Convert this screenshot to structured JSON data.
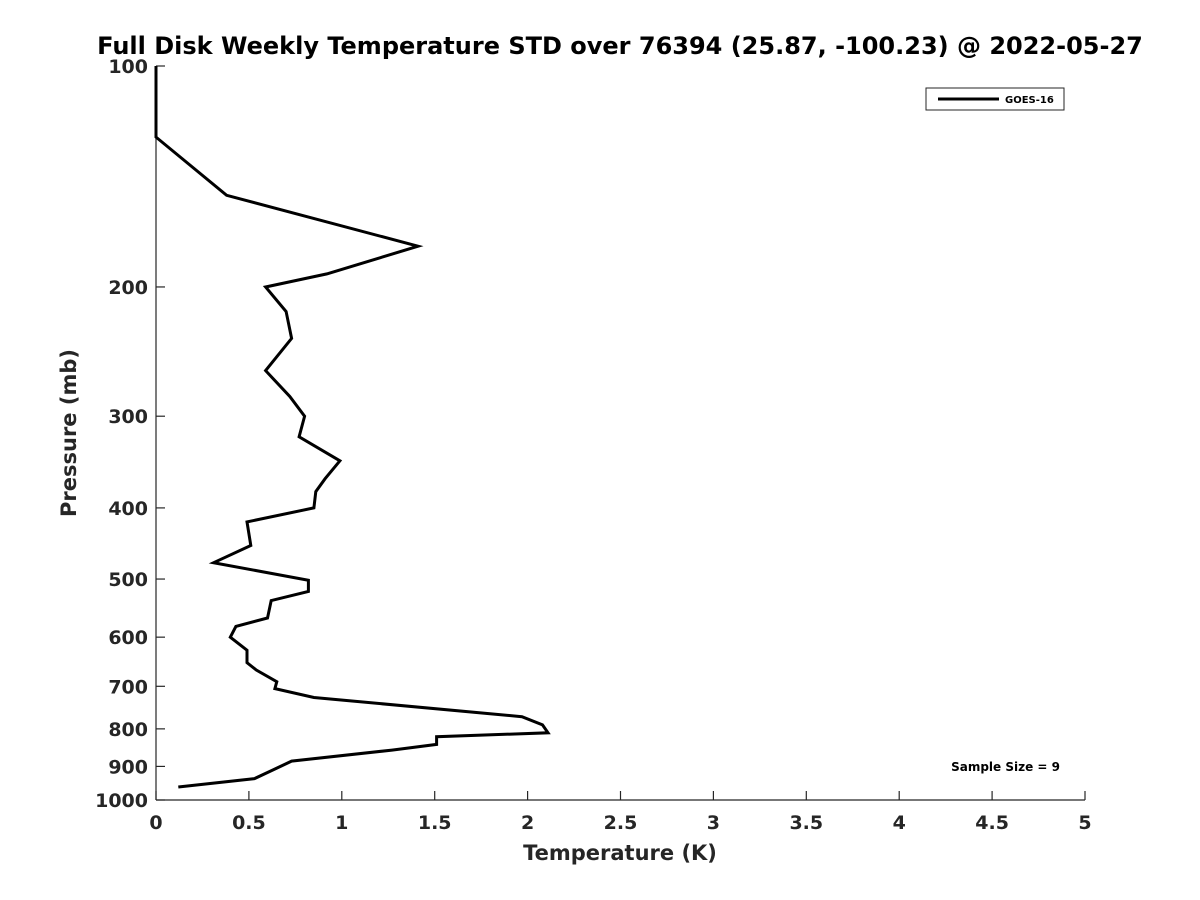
{
  "chart_data": {
    "type": "line",
    "title": "Full Disk Weekly Temperature STD over 76394 (25.87, -100.23) @ 2022-05-27",
    "xlabel": "Temperature (K)",
    "ylabel": "Pressure (mb)",
    "xlim": [
      0,
      5
    ],
    "ylim": [
      100,
      1000
    ],
    "y_scale": "log",
    "y_reversed": true,
    "grid": false,
    "legend_position": "top-right",
    "x_ticks": [
      "0",
      "0.5",
      "1",
      "1.5",
      "2",
      "2.5",
      "3",
      "3.5",
      "4",
      "4.5",
      "5"
    ],
    "y_ticks": [
      "100",
      "200",
      "300",
      "400",
      "500",
      "600",
      "700",
      "800",
      "900",
      "1000"
    ],
    "annotation": "Sample Size = 9",
    "series": [
      {
        "name": "GOES-16",
        "color": "#000000",
        "points": [
          {
            "x": 0.0,
            "y": 100
          },
          {
            "x": 0.0,
            "y": 125
          },
          {
            "x": 0.38,
            "y": 150
          },
          {
            "x": 1.41,
            "y": 176
          },
          {
            "x": 0.92,
            "y": 192
          },
          {
            "x": 0.59,
            "y": 200
          },
          {
            "x": 0.7,
            "y": 216
          },
          {
            "x": 0.73,
            "y": 235
          },
          {
            "x": 0.59,
            "y": 260
          },
          {
            "x": 0.72,
            "y": 282
          },
          {
            "x": 0.8,
            "y": 300
          },
          {
            "x": 0.77,
            "y": 320
          },
          {
            "x": 0.99,
            "y": 345
          },
          {
            "x": 0.91,
            "y": 365
          },
          {
            "x": 0.86,
            "y": 380
          },
          {
            "x": 0.85,
            "y": 400
          },
          {
            "x": 0.49,
            "y": 418
          },
          {
            "x": 0.51,
            "y": 450
          },
          {
            "x": 0.31,
            "y": 475
          },
          {
            "x": 0.82,
            "y": 502
          },
          {
            "x": 0.82,
            "y": 520
          },
          {
            "x": 0.62,
            "y": 535
          },
          {
            "x": 0.6,
            "y": 565
          },
          {
            "x": 0.43,
            "y": 580
          },
          {
            "x": 0.4,
            "y": 600
          },
          {
            "x": 0.49,
            "y": 625
          },
          {
            "x": 0.49,
            "y": 650
          },
          {
            "x": 0.54,
            "y": 665
          },
          {
            "x": 0.65,
            "y": 690
          },
          {
            "x": 0.64,
            "y": 705
          },
          {
            "x": 0.85,
            "y": 725
          },
          {
            "x": 1.97,
            "y": 770
          },
          {
            "x": 2.08,
            "y": 790
          },
          {
            "x": 2.11,
            "y": 810
          },
          {
            "x": 1.51,
            "y": 820
          },
          {
            "x": 1.51,
            "y": 840
          },
          {
            "x": 1.27,
            "y": 855
          },
          {
            "x": 0.73,
            "y": 885
          },
          {
            "x": 0.63,
            "y": 910
          },
          {
            "x": 0.53,
            "y": 935
          },
          {
            "x": 0.12,
            "y": 960
          }
        ]
      }
    ]
  }
}
